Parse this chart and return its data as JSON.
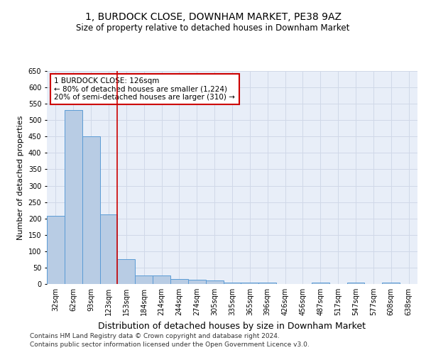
{
  "title": "1, BURDOCK CLOSE, DOWNHAM MARKET, PE38 9AZ",
  "subtitle": "Size of property relative to detached houses in Downham Market",
  "xlabel": "Distribution of detached houses by size in Downham Market",
  "ylabel": "Number of detached properties",
  "footer_line1": "Contains HM Land Registry data © Crown copyright and database right 2024.",
  "footer_line2": "Contains public sector information licensed under the Open Government Licence v3.0.",
  "categories": [
    "32sqm",
    "62sqm",
    "93sqm",
    "123sqm",
    "153sqm",
    "184sqm",
    "214sqm",
    "244sqm",
    "274sqm",
    "305sqm",
    "335sqm",
    "365sqm",
    "396sqm",
    "426sqm",
    "456sqm",
    "487sqm",
    "517sqm",
    "547sqm",
    "577sqm",
    "608sqm",
    "638sqm"
  ],
  "values": [
    207,
    530,
    451,
    212,
    76,
    26,
    26,
    15,
    13,
    10,
    5,
    5,
    5,
    0,
    0,
    5,
    0,
    5,
    0,
    5,
    0
  ],
  "bar_color": "#b8cce4",
  "bar_edge_color": "#5b9bd5",
  "grid_color": "#d0d8e8",
  "background_color": "#e8eef8",
  "annotation_text": "1 BURDOCK CLOSE: 126sqm\n← 80% of detached houses are smaller (1,224)\n20% of semi-detached houses are larger (310) →",
  "redline_x": 3.5,
  "ylim": [
    0,
    650
  ],
  "yticks": [
    0,
    50,
    100,
    150,
    200,
    250,
    300,
    350,
    400,
    450,
    500,
    550,
    600,
    650
  ],
  "annotation_box_color": "#ffffff",
  "annotation_box_edge": "#cc0000",
  "redline_color": "#cc0000",
  "title_fontsize": 10,
  "subtitle_fontsize": 8.5,
  "xlabel_fontsize": 9,
  "ylabel_fontsize": 8,
  "tick_fontsize": 7,
  "footer_fontsize": 6.5,
  "annot_fontsize": 7.5
}
